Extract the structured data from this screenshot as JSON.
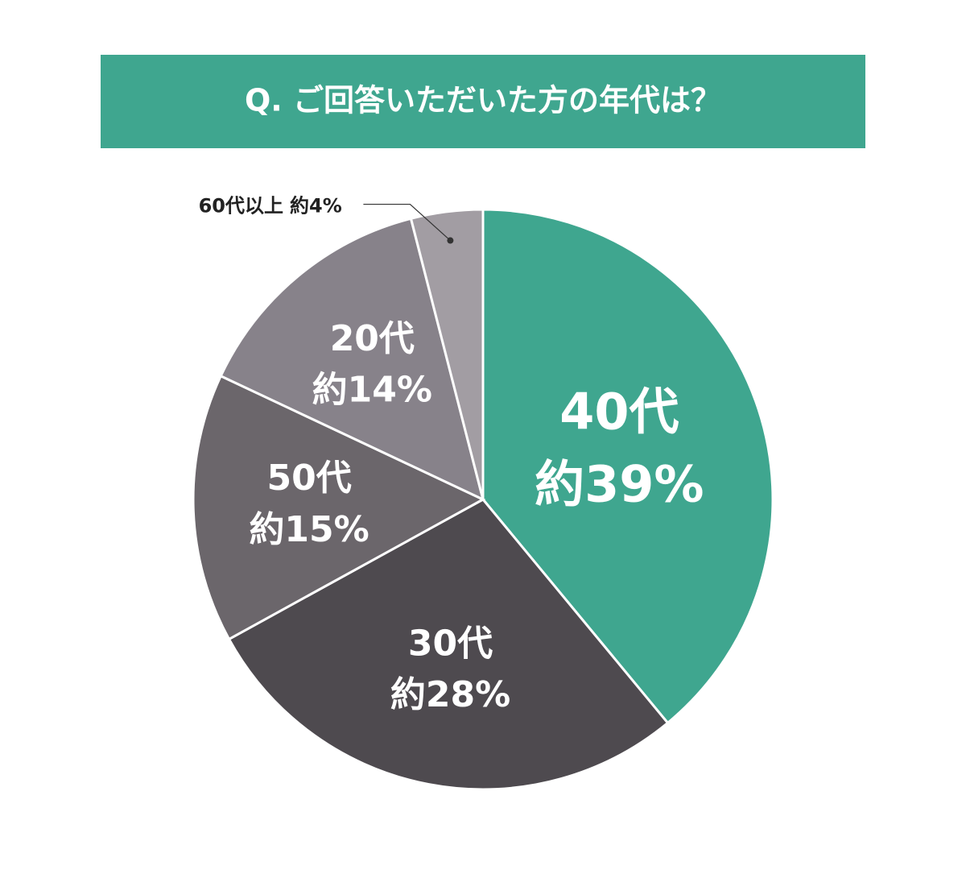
{
  "chart_data": {
    "type": "pie",
    "title": "Q. ご回答いただいた方の年代は？",
    "categories": [
      "40代",
      "30代",
      "50代",
      "20代",
      "60代以上"
    ],
    "values": [
      39,
      28,
      15,
      14,
      4
    ],
    "value_labels": [
      "約39%",
      "約28%",
      "約15%",
      "約14%",
      "約4%"
    ],
    "colors": [
      "#3fa68f",
      "#4e4a4f",
      "#6b666b",
      "#87828a",
      "#a29da3"
    ]
  }
}
